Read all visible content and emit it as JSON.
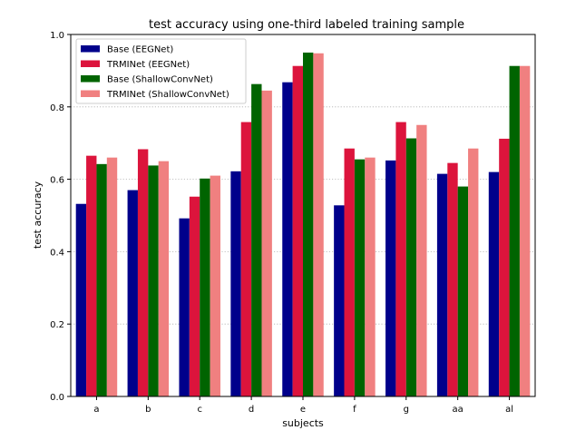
{
  "chart_data": {
    "type": "bar",
    "title": "test accuracy using one-third labeled training sample",
    "xlabel": "subjects",
    "ylabel": "test accuracy",
    "ylim": [
      0,
      1.0
    ],
    "yticks": [
      "0.0",
      "0.2",
      "0.4",
      "0.6",
      "0.8",
      "1.0"
    ],
    "grid": "horizontal dotted",
    "legend_position": "top-left",
    "categories": [
      "a",
      "b",
      "c",
      "d",
      "e",
      "f",
      "g",
      "aa",
      "al"
    ],
    "series": [
      {
        "name": "Base (EEGNet)",
        "color": "#00008B",
        "values": [
          0.532,
          0.57,
          0.492,
          0.622,
          0.868,
          0.528,
          0.652,
          0.615,
          0.62
        ]
      },
      {
        "name": "TRMINet (EEGNet)",
        "color": "#DC143C",
        "values": [
          0.665,
          0.683,
          0.552,
          0.758,
          0.913,
          0.685,
          0.758,
          0.645,
          0.712
        ]
      },
      {
        "name": "Base (ShallowConvNet)",
        "color": "#006400",
        "values": [
          0.642,
          0.638,
          0.602,
          0.863,
          0.95,
          0.655,
          0.713,
          0.58,
          0.913
        ]
      },
      {
        "name": "TRMINet (ShallowConvNet)",
        "color": "#F08080",
        "values": [
          0.66,
          0.65,
          0.61,
          0.845,
          0.948,
          0.66,
          0.75,
          0.685,
          0.913
        ]
      }
    ]
  }
}
